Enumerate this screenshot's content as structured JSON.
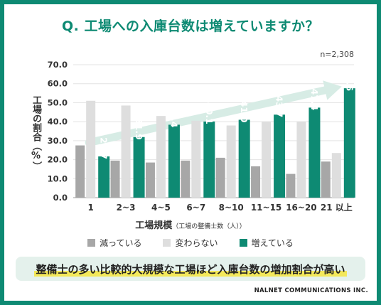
{
  "title": "Q. 工場への入庫台数は増えていますか？",
  "sample_note": "n=2,308",
  "footer": "NALNET COMMUNICATIONS INC.",
  "banner": "整備士の多い比較的大規模な工場ほど入庫台数の増加割合が高い",
  "colors": {
    "brand": "#0e8a73",
    "decreasing": "#a7a7a7",
    "unchanged": "#dedede",
    "increasing": "#0e8a73",
    "arrow": "#d7ece5",
    "banner_bg": "#e4f1ec",
    "highlight": "#f3e85a"
  },
  "chart_data": {
    "type": "bar",
    "ylabel": "工場の割合（%）",
    "xlabel": "工場規模",
    "xlabel_sub": "（工場の整備士数（人））",
    "categories": [
      "1",
      "2~3",
      "4~5",
      "6~7",
      "8~10",
      "11~15",
      "16~20",
      "21 以上"
    ],
    "ylim": [
      0,
      70
    ],
    "yticks": [
      "0.0",
      "10.0",
      "20.0",
      "30.0",
      "40.0",
      "50.0",
      "60.0",
      "70.0"
    ],
    "grid": true,
    "legend_position": "bottom",
    "series": [
      {
        "name": "減っている",
        "values": [
          27.5,
          19.5,
          18.5,
          19.5,
          21.0,
          16.5,
          12.5,
          19.0
        ]
      },
      {
        "name": "変わらない",
        "values": [
          51.0,
          48.5,
          43.0,
          40.5,
          38.0,
          40.0,
          40.0,
          23.5
        ]
      },
      {
        "name": "増えている",
        "values": [
          21.7,
          31.9,
          38.4,
          40.1,
          41.0,
          43.7,
          47.4,
          57.6
        ]
      }
    ],
    "data_labels": [
      "21.7",
      "31.9",
      "38.4",
      "40.1",
      "41.0",
      "43.7",
      "47.4",
      "57.6"
    ],
    "annotation": "upward trend arrow"
  }
}
